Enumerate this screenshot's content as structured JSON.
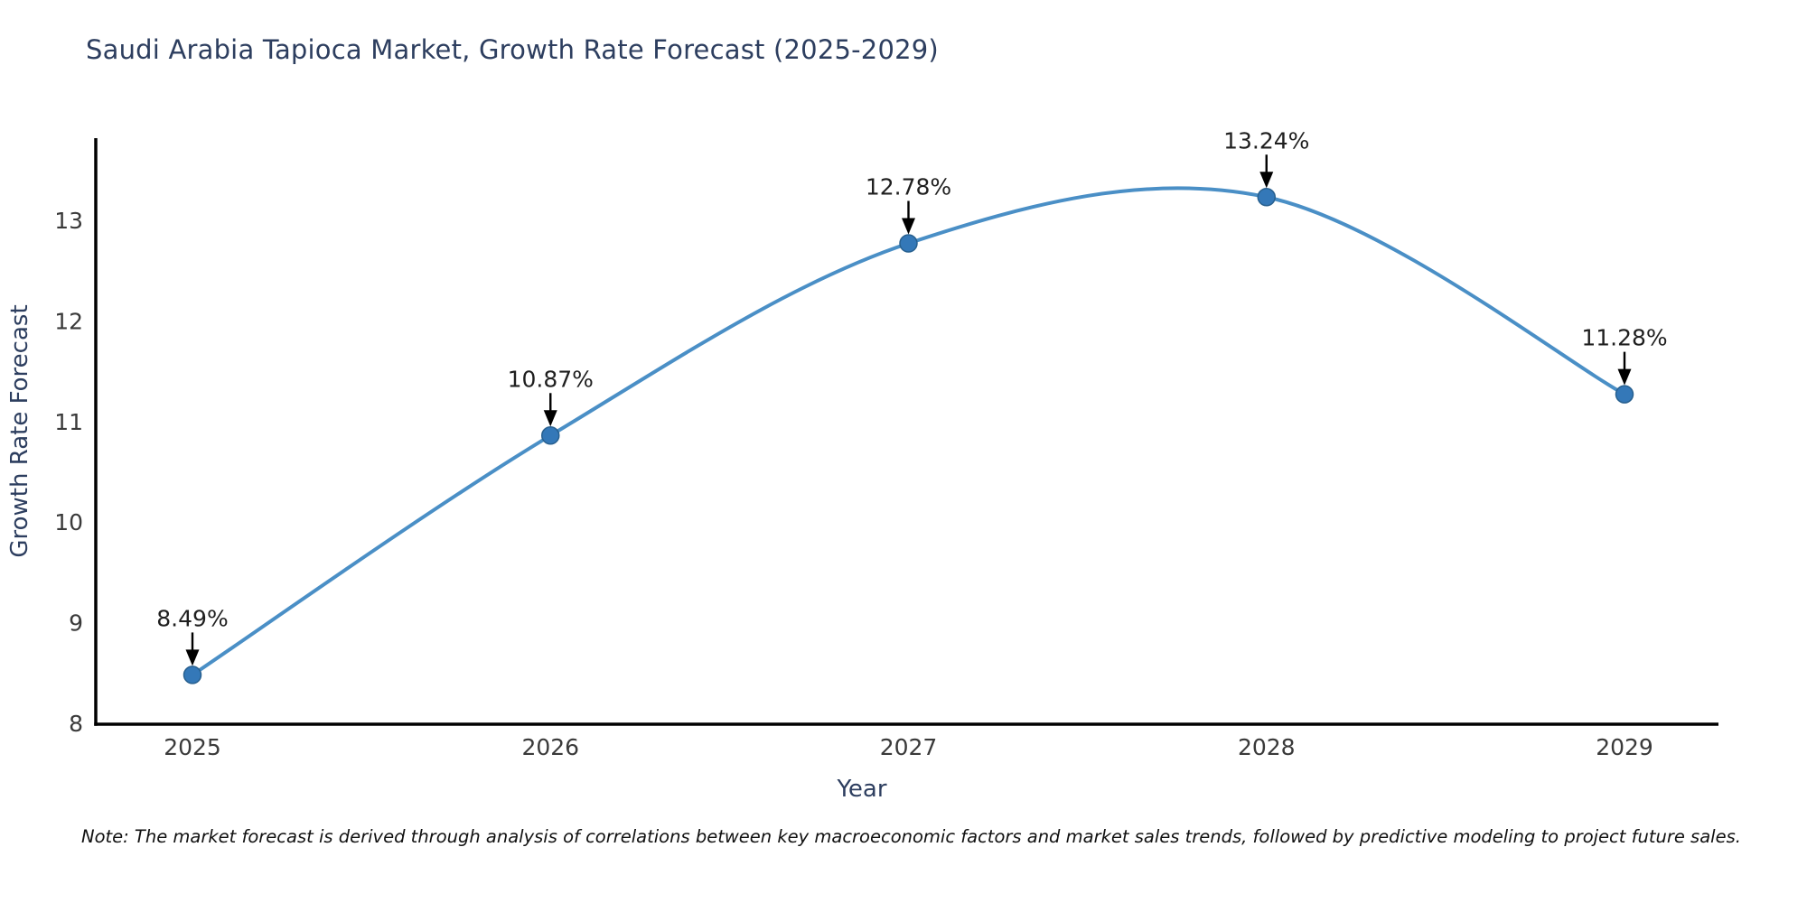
{
  "title": "Saudi Arabia Tapioca Market, Growth Rate Forecast (2025-2029)",
  "note": "Note: The market forecast is derived through analysis of correlations between key macroeconomic factors and market sales trends, followed by predictive modeling to project future sales.",
  "chart_data": {
    "type": "line",
    "title": "Saudi Arabia Tapioca Market, Growth Rate Forecast (2025-2029)",
    "xlabel": "Year",
    "ylabel": "Growth Rate Forecast",
    "x": [
      2025,
      2026,
      2027,
      2028,
      2029
    ],
    "values": [
      8.49,
      10.87,
      12.78,
      13.24,
      11.28
    ],
    "point_labels": [
      "8.49%",
      "10.87%",
      "12.78%",
      "13.24%",
      "11.28%"
    ],
    "xticks": [
      "2025",
      "2026",
      "2027",
      "2028",
      "2029"
    ],
    "yticks": [
      8,
      9,
      10,
      11,
      12,
      13
    ],
    "ylim": [
      8,
      13.8
    ],
    "xlim": [
      2024.73,
      2029.26
    ],
    "grid": false,
    "legend": "none",
    "smooth_curve": true,
    "colors": {
      "line": "#4a8fc6",
      "marker_fill": "#3478b8",
      "marker_edge": "#28608f",
      "axis_line": "#000000",
      "tick_label": "#3a3a3a",
      "axis_title": "#2d3e5f",
      "annotation_text": "#1f1f1f",
      "annotation_arrow": "#000000"
    }
  }
}
